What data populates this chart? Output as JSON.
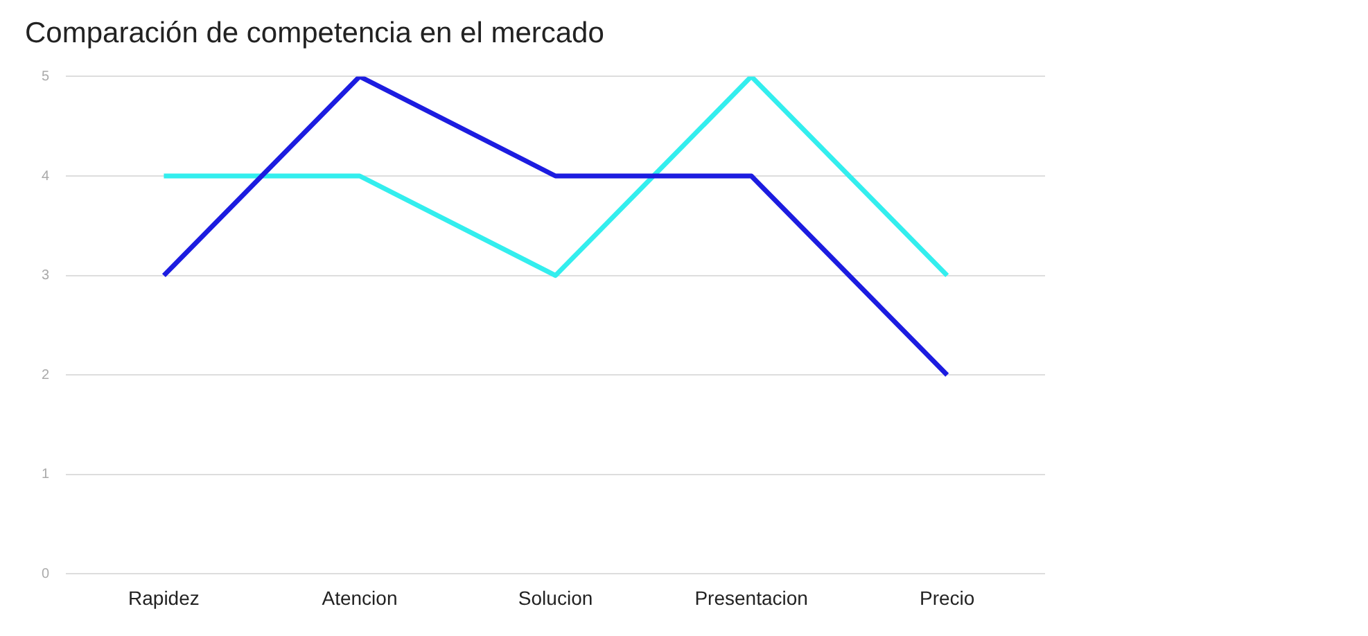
{
  "chart_data": {
    "type": "line",
    "title": "Comparación de competencia en el mercado",
    "categories": [
      "Rapidez",
      "Atencion",
      "Solucion",
      "Presentacion",
      "Precio"
    ],
    "series": [
      {
        "color": "#1c1ce0",
        "values": [
          3,
          5,
          4,
          4,
          2
        ]
      },
      {
        "color": "#33eeee",
        "values": [
          4,
          4,
          3,
          5,
          3
        ]
      }
    ],
    "ylim": [
      0,
      5
    ],
    "yticks": [
      0,
      1,
      2,
      3,
      4,
      5
    ],
    "grid": "y",
    "marker": "none",
    "line_style": "solid"
  }
}
